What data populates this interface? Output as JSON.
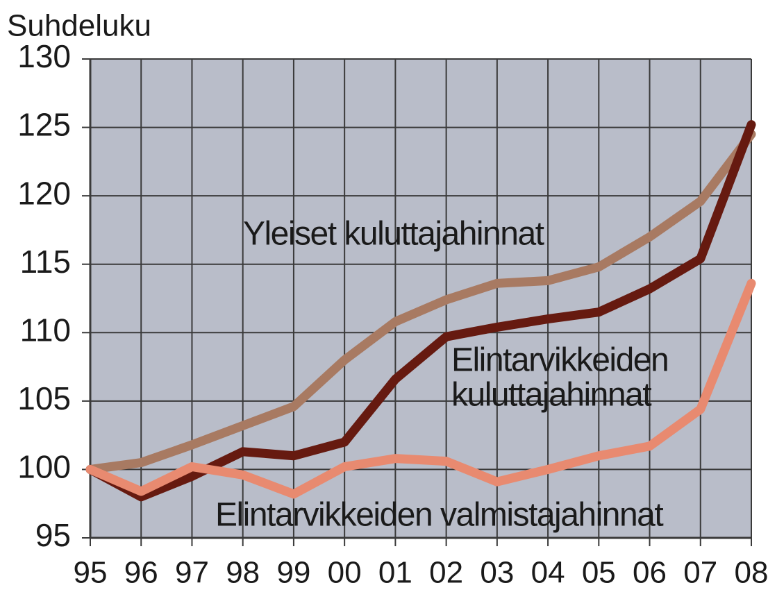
{
  "chart_data": {
    "type": "line",
    "y_label": "Suhdeluku",
    "categories": [
      "95",
      "96",
      "97",
      "98",
      "99",
      "00",
      "01",
      "02",
      "03",
      "04",
      "05",
      "06",
      "07",
      "08"
    ],
    "series": [
      {
        "color": "#a87a62",
        "values": [
          100,
          100.5,
          101.8,
          103.2,
          104.6,
          108,
          110.8,
          112.4,
          113.6,
          113.8,
          114.8,
          117,
          119.6,
          124.5
        ]
      },
      {
        "color": "#661a10",
        "values": [
          100,
          98,
          99.5,
          101.3,
          101,
          102,
          106.6,
          109.7,
          110.4,
          111,
          111.5,
          113.2,
          115.4,
          125.2
        ]
      },
      {
        "color": "#e88a70",
        "values": [
          100,
          98.4,
          100.2,
          99.6,
          98.2,
          100.2,
          100.8,
          100.6,
          99.1,
          100,
          101,
          101.7,
          104.4,
          113.6
        ]
      }
    ],
    "annotations": [
      [
        "Yleiset kuluttajahinnat"
      ],
      [
        "Elintarvikkeiden",
        "kuluttajahinnat"
      ],
      [
        "Elintarvikkeiden valmistajahinnat"
      ]
    ],
    "ylim": [
      95,
      130
    ],
    "yticks": [
      95,
      100,
      105,
      110,
      115,
      120,
      125,
      130
    ],
    "grid": true
  }
}
